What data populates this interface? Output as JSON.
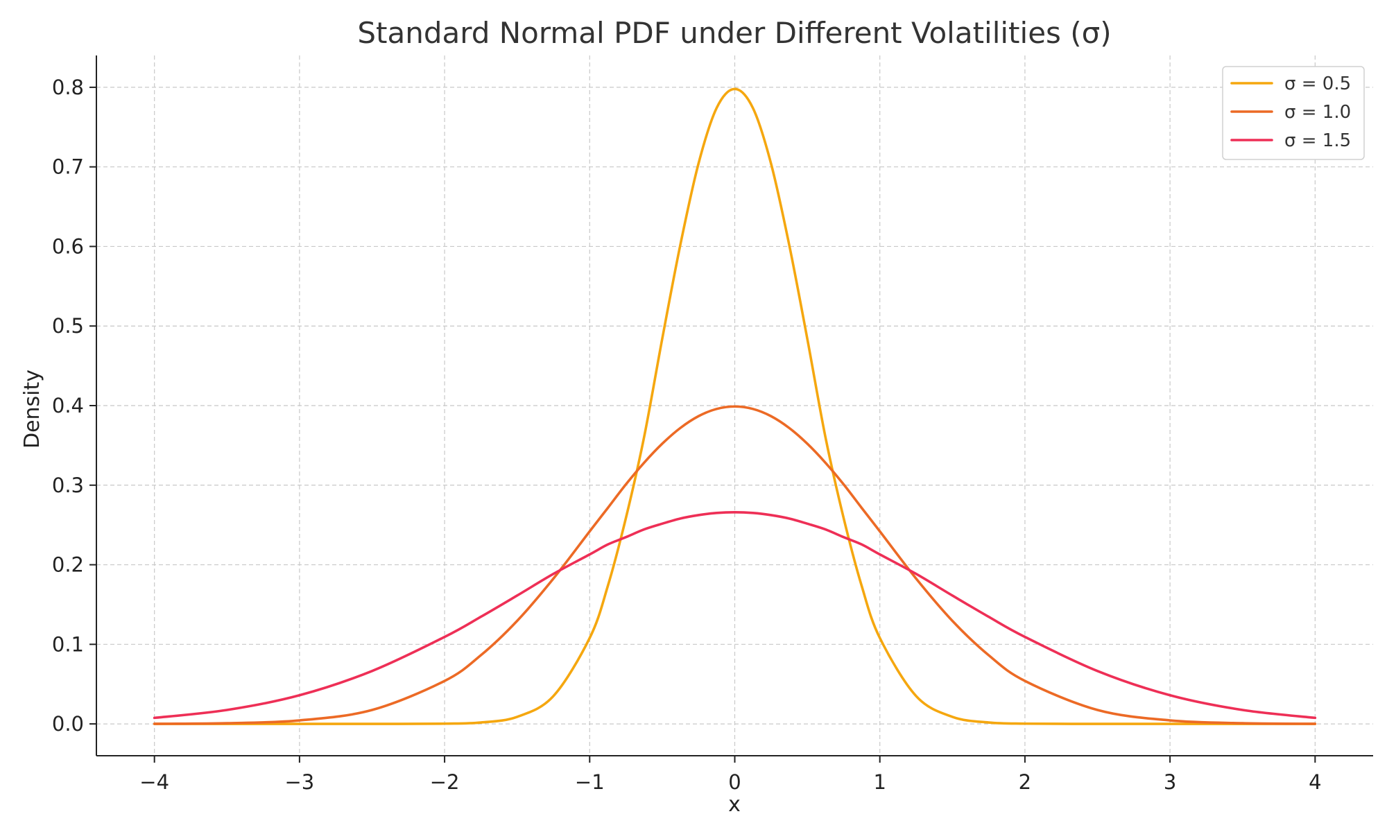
{
  "chart_data": {
    "type": "line",
    "title": "Standard Normal PDF under Different Volatilities (σ)",
    "xlabel": "x",
    "ylabel": "Density",
    "xlim": [
      -4.4,
      4.4
    ],
    "ylim": [
      -0.04,
      0.84
    ],
    "xticks": [
      -4,
      -3,
      -2,
      -1,
      0,
      1,
      2,
      3,
      4
    ],
    "xtick_labels": [
      "−4",
      "−3",
      "−2",
      "−1",
      "0",
      "1",
      "2",
      "3",
      "4"
    ],
    "yticks": [
      0.0,
      0.1,
      0.2,
      0.3,
      0.4,
      0.5,
      0.6,
      0.7,
      0.8
    ],
    "ytick_labels": [
      "0.0",
      "0.1",
      "0.2",
      "0.3",
      "0.4",
      "0.5",
      "0.6",
      "0.7",
      "0.8"
    ],
    "grid": true,
    "legend_position": "top-right",
    "x": [
      -4,
      -3.5,
      -3,
      -2.5,
      -2,
      -1.75,
      -1.5,
      -1.25,
      -1,
      -0.875,
      -0.75,
      -0.625,
      -0.5,
      -0.375,
      -0.25,
      -0.125,
      0,
      0.125,
      0.25,
      0.375,
      0.5,
      0.625,
      0.75,
      0.875,
      1,
      1.25,
      1.5,
      1.75,
      2,
      2.5,
      3,
      3.5,
      4
    ],
    "series": [
      {
        "name": "σ = 0.5",
        "color": "#f5a70f",
        "values": [
          0.0,
          0.0,
          0.0,
          0.0,
          0.0003,
          0.0018,
          0.0089,
          0.035,
          0.108,
          0.1733,
          0.259,
          0.3604,
          0.4839,
          0.6022,
          0.7041,
          0.774,
          0.7979,
          0.774,
          0.7041,
          0.6022,
          0.4839,
          0.3604,
          0.259,
          0.1733,
          0.108,
          0.035,
          0.0089,
          0.0018,
          0.0003,
          0.0,
          0.0,
          0.0,
          0.0
        ]
      },
      {
        "name": "σ = 1.0",
        "color": "#ec6a25",
        "values": [
          0.0001,
          0.0009,
          0.0044,
          0.0175,
          0.054,
          0.0863,
          0.1295,
          0.1826,
          0.242,
          0.2714,
          0.3011,
          0.3282,
          0.3521,
          0.3719,
          0.3867,
          0.3958,
          0.3989,
          0.3958,
          0.3867,
          0.3719,
          0.3521,
          0.3282,
          0.3011,
          0.2714,
          0.242,
          0.1826,
          0.1295,
          0.0863,
          0.054,
          0.0175,
          0.0044,
          0.0009,
          0.0001
        ]
      },
      {
        "name": "σ = 1.5",
        "color": "#ee2f56",
        "values": [
          0.0076,
          0.0175,
          0.036,
          0.0665,
          0.1093,
          0.1346,
          0.1613,
          0.1885,
          0.213,
          0.2255,
          0.2347,
          0.2444,
          0.2516,
          0.2581,
          0.2624,
          0.2651,
          0.266,
          0.2651,
          0.2624,
          0.2581,
          0.2516,
          0.2444,
          0.2347,
          0.2255,
          0.213,
          0.1885,
          0.1613,
          0.1346,
          0.1093,
          0.0665,
          0.036,
          0.0175,
          0.0076
        ]
      }
    ]
  }
}
